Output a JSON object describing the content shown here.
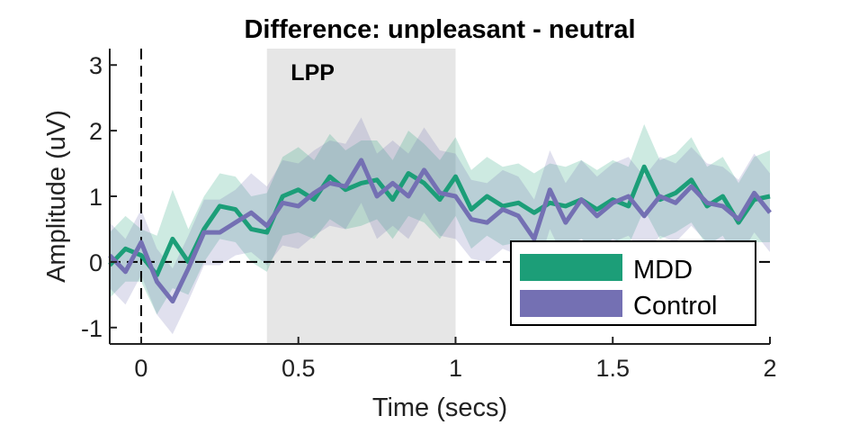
{
  "chart_data": {
    "type": "line",
    "title": "Difference: unpleasant - neutral",
    "xlabel": "Time (secs)",
    "ylabel": "Amplitude (uV)",
    "xlim": [
      -0.1,
      2.0
    ],
    "ylim": [
      -1.25,
      3.25
    ],
    "xticks": [
      0,
      0.5,
      1,
      1.5,
      2
    ],
    "xtick_labels": [
      "0",
      "0.5",
      "1",
      "1.5",
      "2"
    ],
    "yticks": [
      -1,
      0,
      1,
      2,
      3
    ],
    "ytick_labels": [
      "-1",
      "0",
      "1",
      "2",
      "3"
    ],
    "grid": false,
    "shaded_region": {
      "label": "LPP",
      "x_start": 0.4,
      "x_end": 1.0,
      "color": "#e6e6e6"
    },
    "reference_lines": [
      {
        "axis": "x",
        "value": 0,
        "style": "dashed"
      },
      {
        "axis": "y",
        "value": 0,
        "style": "dashed"
      }
    ],
    "legend": {
      "placement": "bottom-right"
    },
    "colors": {
      "MDD": "#1c9e78",
      "Control": "#7470b3"
    },
    "x": [
      -0.1,
      -0.05,
      0.0,
      0.05,
      0.1,
      0.15,
      0.2,
      0.25,
      0.3,
      0.35,
      0.4,
      0.45,
      0.5,
      0.55,
      0.6,
      0.65,
      0.7,
      0.75,
      0.8,
      0.85,
      0.9,
      0.95,
      1.0,
      1.05,
      1.1,
      1.15,
      1.2,
      1.25,
      1.3,
      1.35,
      1.4,
      1.45,
      1.5,
      1.55,
      1.6,
      1.65,
      1.7,
      1.75,
      1.8,
      1.85,
      1.9,
      1.95,
      2.0
    ],
    "series": [
      {
        "name": "MDD",
        "values": [
          -0.05,
          0.2,
          0.1,
          -0.2,
          0.35,
          0.0,
          0.5,
          0.85,
          0.8,
          0.5,
          0.45,
          1.0,
          1.1,
          0.95,
          1.3,
          1.1,
          1.2,
          1.25,
          0.95,
          1.35,
          1.2,
          0.95,
          1.3,
          0.8,
          1.0,
          0.85,
          0.9,
          0.75,
          0.9,
          0.85,
          0.95,
          0.8,
          0.95,
          0.85,
          1.45,
          0.95,
          1.05,
          1.25,
          0.85,
          1.0,
          0.6,
          0.95,
          1.0
        ],
        "band_lower": [
          -0.55,
          -0.3,
          -0.3,
          -0.8,
          -0.4,
          -0.5,
          0.0,
          0.35,
          0.3,
          0.0,
          -0.15,
          0.4,
          0.45,
          0.35,
          0.65,
          0.5,
          0.55,
          0.65,
          0.35,
          0.7,
          0.6,
          0.35,
          0.7,
          0.2,
          0.4,
          0.25,
          0.3,
          0.15,
          0.3,
          0.25,
          0.35,
          0.2,
          0.35,
          0.25,
          0.8,
          0.35,
          0.45,
          0.6,
          0.25,
          0.4,
          0.0,
          0.3,
          0.3
        ],
        "band_upper": [
          0.45,
          0.7,
          0.5,
          0.4,
          1.1,
          0.5,
          1.0,
          1.35,
          1.3,
          1.0,
          1.05,
          1.6,
          1.75,
          1.55,
          1.95,
          1.7,
          1.85,
          1.85,
          1.55,
          2.0,
          1.8,
          1.55,
          1.9,
          1.4,
          1.6,
          1.45,
          1.5,
          1.35,
          1.5,
          1.45,
          1.55,
          1.4,
          1.55,
          1.45,
          2.1,
          1.55,
          1.65,
          1.9,
          1.45,
          1.6,
          1.2,
          1.6,
          1.7
        ]
      },
      {
        "name": "Control",
        "values": [
          0.1,
          -0.15,
          0.3,
          -0.3,
          -0.6,
          -0.1,
          0.45,
          0.45,
          0.6,
          0.75,
          0.55,
          0.9,
          0.85,
          1.05,
          1.2,
          1.15,
          1.55,
          1.0,
          1.2,
          1.0,
          1.4,
          1.05,
          1.0,
          0.65,
          0.6,
          0.8,
          0.7,
          0.35,
          1.1,
          0.6,
          0.95,
          0.7,
          0.9,
          1.0,
          0.7,
          1.0,
          0.9,
          1.15,
          0.9,
          0.85,
          0.65,
          1.05,
          0.75
        ],
        "band_lower": [
          -0.4,
          -0.65,
          -0.2,
          -0.8,
          -1.1,
          -0.6,
          -0.05,
          -0.05,
          0.1,
          0.15,
          -0.05,
          0.25,
          0.2,
          0.4,
          0.55,
          0.5,
          0.9,
          0.35,
          0.55,
          0.35,
          0.75,
          0.4,
          0.35,
          0.05,
          0.0,
          0.2,
          0.1,
          -0.25,
          0.5,
          0.0,
          0.35,
          0.1,
          0.3,
          0.4,
          0.1,
          0.4,
          0.3,
          0.55,
          0.3,
          0.25,
          0.05,
          0.45,
          0.15
        ],
        "band_upper": [
          0.6,
          0.35,
          0.8,
          0.2,
          -0.1,
          0.4,
          0.95,
          0.95,
          1.1,
          1.35,
          1.15,
          1.55,
          1.5,
          1.7,
          1.85,
          1.8,
          2.2,
          1.65,
          1.85,
          1.65,
          2.05,
          1.7,
          1.65,
          1.25,
          1.2,
          1.4,
          1.3,
          0.95,
          1.7,
          1.2,
          1.55,
          1.3,
          1.5,
          1.6,
          1.3,
          1.6,
          1.5,
          1.75,
          1.5,
          1.45,
          1.25,
          1.65,
          1.35
        ]
      }
    ]
  }
}
